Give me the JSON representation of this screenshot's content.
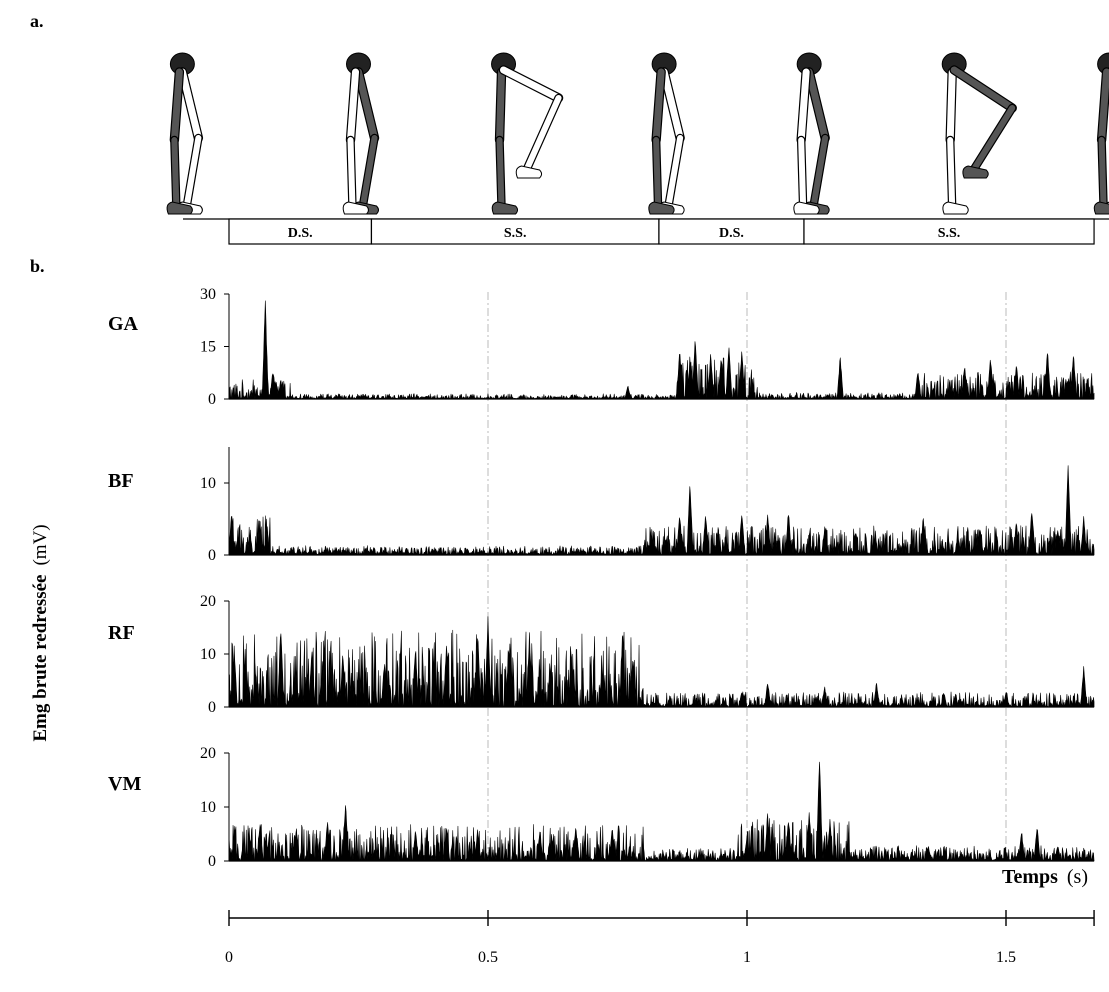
{
  "panels": {
    "a": "a.",
    "b": "b."
  },
  "phases": [
    {
      "label": "D.S.",
      "t0": 0.0,
      "t1": 0.275
    },
    {
      "label": "S.S.",
      "t0": 0.275,
      "t1": 0.83
    },
    {
      "label": "D.S.",
      "t0": 0.83,
      "t1": 1.11
    },
    {
      "label": "S.S.",
      "t0": 1.11,
      "t1": 1.67
    }
  ],
  "skeleton_poses": [
    {
      "t": -0.09,
      "pose": "stance-left-back"
    },
    {
      "t": 0.25,
      "pose": "stance-right-back"
    },
    {
      "t": 0.53,
      "pose": "swing-knee-up"
    },
    {
      "t": 0.84,
      "pose": "stance-left-back"
    },
    {
      "t": 1.12,
      "pose": "stance-right-back"
    },
    {
      "t": 1.4,
      "pose": "swing-knee-up-high"
    },
    {
      "t": 1.7,
      "pose": "stance-left-back"
    }
  ],
  "chart_data": {
    "type": "area",
    "ylabel": {
      "main": "Emg brute redressée",
      "unit": "(mV)"
    },
    "xlabel": {
      "main": "Temps",
      "unit": "(s)"
    },
    "xlim": [
      0,
      1.67
    ],
    "xticks": [
      {
        "value": 0,
        "label": "0"
      },
      {
        "value": 0.5,
        "label": "0.5"
      },
      {
        "value": 1,
        "label": "1"
      },
      {
        "value": 1.5,
        "label": "1.5"
      }
    ],
    "vertical_gridlines": [
      0.5,
      1.0,
      1.5
    ],
    "series": [
      {
        "name": "GA",
        "ylim": [
          0,
          30
        ],
        "yticks": [
          {
            "value": 0,
            "label": "0"
          },
          {
            "value": 15,
            "label": "15"
          },
          {
            "value": 30,
            "label": "30"
          }
        ],
        "baseline": 1.5,
        "segments": [
          {
            "t0": 0.0,
            "t1": 0.12,
            "level": 2.5
          },
          {
            "t0": 0.12,
            "t1": 0.86,
            "level": 0.6
          },
          {
            "t0": 0.86,
            "t1": 1.02,
            "level": 5.5
          },
          {
            "t0": 1.02,
            "t1": 1.33,
            "level": 0.8
          },
          {
            "t0": 1.33,
            "t1": 1.67,
            "level": 3.5
          }
        ],
        "peaks": [
          {
            "t": 0.07,
            "v": 29
          },
          {
            "t": 0.085,
            "v": 9
          },
          {
            "t": 0.1,
            "v": 6
          },
          {
            "t": 0.77,
            "v": 4
          },
          {
            "t": 0.87,
            "v": 15
          },
          {
            "t": 0.89,
            "v": 12
          },
          {
            "t": 0.9,
            "v": 19
          },
          {
            "t": 0.93,
            "v": 14
          },
          {
            "t": 0.95,
            "v": 13
          },
          {
            "t": 0.965,
            "v": 16
          },
          {
            "t": 0.99,
            "v": 15
          },
          {
            "t": 1.18,
            "v": 13
          },
          {
            "t": 1.33,
            "v": 9
          },
          {
            "t": 1.42,
            "v": 10
          },
          {
            "t": 1.47,
            "v": 13
          },
          {
            "t": 1.52,
            "v": 11
          },
          {
            "t": 1.58,
            "v": 15
          },
          {
            "t": 1.63,
            "v": 14
          }
        ]
      },
      {
        "name": "BF",
        "ylim": [
          0,
          15
        ],
        "yticks": [
          {
            "value": 0,
            "label": "0"
          },
          {
            "value": 10,
            "label": "10"
          }
        ],
        "baseline": 0.6,
        "segments": [
          {
            "t0": 0.0,
            "t1": 0.08,
            "level": 2.5
          },
          {
            "t0": 0.08,
            "t1": 0.8,
            "level": 0.5
          },
          {
            "t0": 0.8,
            "t1": 1.67,
            "level": 1.8
          }
        ],
        "peaks": [
          {
            "t": 0.005,
            "v": 6
          },
          {
            "t": 0.06,
            "v": 4
          },
          {
            "t": 0.87,
            "v": 6
          },
          {
            "t": 0.89,
            "v": 11
          },
          {
            "t": 0.92,
            "v": 6
          },
          {
            "t": 0.99,
            "v": 6.5
          },
          {
            "t": 1.04,
            "v": 6
          },
          {
            "t": 1.08,
            "v": 6.5
          },
          {
            "t": 1.15,
            "v": 4
          },
          {
            "t": 1.21,
            "v": 3.5
          },
          {
            "t": 1.34,
            "v": 5.5
          },
          {
            "t": 1.45,
            "v": 4
          },
          {
            "t": 1.52,
            "v": 5
          },
          {
            "t": 1.55,
            "v": 7
          },
          {
            "t": 1.6,
            "v": 4
          },
          {
            "t": 1.62,
            "v": 14
          },
          {
            "t": 1.65,
            "v": 5.5
          }
        ]
      },
      {
        "name": "RF",
        "ylim": [
          0,
          20
        ],
        "yticks": [
          {
            "value": 0,
            "label": "0"
          },
          {
            "value": 10,
            "label": "10"
          },
          {
            "value": 20,
            "label": "20"
          }
        ],
        "baseline": 0.8,
        "segments": [
          {
            "t0": 0.0,
            "t1": 0.8,
            "level": 6.5
          },
          {
            "t0": 0.8,
            "t1": 1.67,
            "level": 1.2
          }
        ],
        "peaks": [
          {
            "t": 0.01,
            "v": 12
          },
          {
            "t": 0.1,
            "v": 16.5
          },
          {
            "t": 0.16,
            "v": 11
          },
          {
            "t": 0.22,
            "v": 11
          },
          {
            "t": 0.3,
            "v": 9
          },
          {
            "t": 0.36,
            "v": 12.5
          },
          {
            "t": 0.42,
            "v": 13
          },
          {
            "t": 0.48,
            "v": 15
          },
          {
            "t": 0.5,
            "v": 17.5
          },
          {
            "t": 0.54,
            "v": 12
          },
          {
            "t": 0.58,
            "v": 14
          },
          {
            "t": 0.62,
            "v": 8
          },
          {
            "t": 0.66,
            "v": 6
          },
          {
            "t": 0.72,
            "v": 7
          },
          {
            "t": 0.76,
            "v": 16
          },
          {
            "t": 0.78,
            "v": 10
          },
          {
            "t": 0.99,
            "v": 3
          },
          {
            "t": 1.04,
            "v": 5
          },
          {
            "t": 1.15,
            "v": 4
          },
          {
            "t": 1.25,
            "v": 5
          },
          {
            "t": 1.38,
            "v": 3
          },
          {
            "t": 1.5,
            "v": 3
          },
          {
            "t": 1.65,
            "v": 8
          }
        ]
      },
      {
        "name": "VM",
        "ylim": [
          0,
          20
        ],
        "yticks": [
          {
            "value": 0,
            "label": "0"
          },
          {
            "value": 10,
            "label": "10"
          },
          {
            "value": 20,
            "label": "20"
          }
        ],
        "baseline": 0.8,
        "segments": [
          {
            "t0": 0.0,
            "t1": 0.8,
            "level": 3.0
          },
          {
            "t0": 0.8,
            "t1": 0.98,
            "level": 1.0
          },
          {
            "t0": 0.98,
            "t1": 1.2,
            "level": 3.5
          },
          {
            "t0": 1.2,
            "t1": 1.67,
            "level": 1.2
          }
        ],
        "peaks": [
          {
            "t": 0.06,
            "v": 8
          },
          {
            "t": 0.13,
            "v": 6
          },
          {
            "t": 0.19,
            "v": 8
          },
          {
            "t": 0.225,
            "v": 12
          },
          {
            "t": 0.36,
            "v": 6
          },
          {
            "t": 0.42,
            "v": 7
          },
          {
            "t": 0.48,
            "v": 6
          },
          {
            "t": 0.6,
            "v": 6
          },
          {
            "t": 0.67,
            "v": 6
          },
          {
            "t": 0.74,
            "v": 6.5
          },
          {
            "t": 1.0,
            "v": 5
          },
          {
            "t": 1.04,
            "v": 9
          },
          {
            "t": 1.08,
            "v": 8
          },
          {
            "t": 1.12,
            "v": 10
          },
          {
            "t": 1.14,
            "v": 20.5
          },
          {
            "t": 1.16,
            "v": 8
          },
          {
            "t": 1.35,
            "v": 3
          },
          {
            "t": 1.53,
            "v": 6
          },
          {
            "t": 1.56,
            "v": 7
          },
          {
            "t": 1.6,
            "v": 3
          }
        ]
      }
    ]
  },
  "colors": {
    "ink": "#000000",
    "bone": "#ffffff",
    "bone_dark": "#555555",
    "grid": "#bbbbbb"
  }
}
